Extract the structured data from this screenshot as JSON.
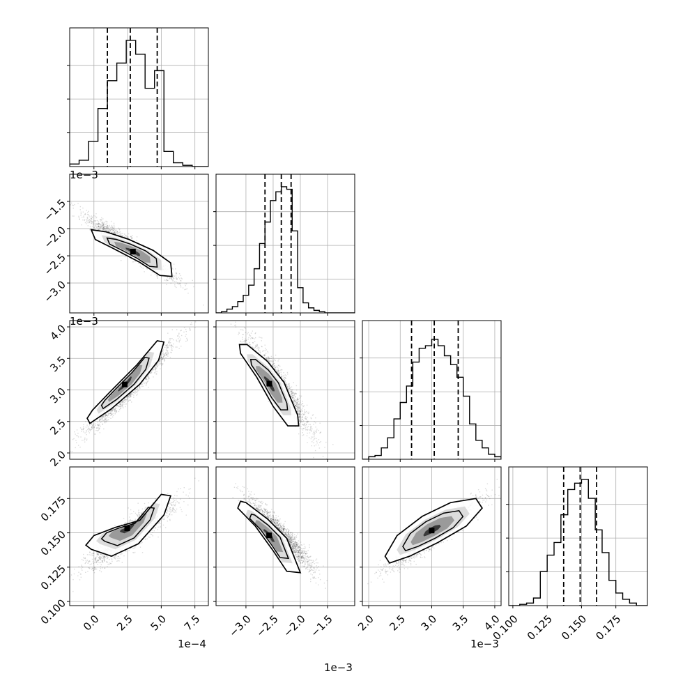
{
  "chart_data": {
    "type": "corner",
    "n_params": 4,
    "colors": {
      "contour": "#000000",
      "points": "#000000",
      "grid": "#b0b0b0",
      "axes": "#000000"
    },
    "grid": true,
    "params": [
      {
        "range": [
          -1.8,
          8.5
        ],
        "scale_label": "1e−4",
        "ticks": [
          0.0,
          2.5,
          5.0,
          7.5
        ],
        "tick_labels": [
          "0.0",
          "2.5",
          "5.0",
          "7.5"
        ],
        "quantiles": [
          1.0,
          2.7,
          4.7
        ],
        "hist_bins": [
          -1.8,
          -1.1,
          -0.4,
          0.3,
          1.0,
          1.7,
          2.4,
          3.1,
          3.8,
          4.5,
          5.2,
          5.9,
          6.6,
          7.3,
          8.0,
          8.5
        ],
        "hist": [
          0.02,
          0.05,
          0.2,
          0.46,
          0.68,
          0.82,
          1.0,
          0.89,
          0.62,
          0.76,
          0.12,
          0.03,
          0.01,
          0.0,
          0.0
        ]
      },
      {
        "range": [
          -3.55,
          -1.0
        ],
        "scale_label": "1e−3",
        "ticks": [
          -3.0,
          -2.5,
          -2.0,
          -1.5
        ],
        "tick_labels": [
          "−3.0",
          "−2.5",
          "−2.0",
          "−1.5"
        ],
        "quantiles": [
          -2.65,
          -2.35,
          -2.17
        ],
        "hist_bins": [
          -3.55,
          -3.45,
          -3.35,
          -3.25,
          -3.15,
          -3.05,
          -2.95,
          -2.85,
          -2.75,
          -2.65,
          -2.55,
          -2.45,
          -2.35,
          -2.25,
          -2.15,
          -2.05,
          -1.95,
          -1.85,
          -1.75,
          -1.65,
          -1.55,
          -1.0
        ],
        "hist": [
          0.0,
          0.01,
          0.03,
          0.05,
          0.09,
          0.14,
          0.22,
          0.35,
          0.55,
          0.72,
          0.89,
          0.96,
          1.0,
          0.98,
          0.65,
          0.2,
          0.08,
          0.04,
          0.02,
          0.01,
          0.0
        ]
      },
      {
        "range": [
          1.9,
          4.1
        ],
        "scale_label": "1e−3",
        "ticks": [
          2.0,
          2.5,
          3.0,
          3.5,
          4.0
        ],
        "tick_labels": [
          "2.0",
          "2.5",
          "3.0",
          "3.5",
          "4.0"
        ],
        "quantiles": [
          2.68,
          3.04,
          3.42
        ],
        "hist_bins": [
          1.9,
          2.0,
          2.1,
          2.2,
          2.3,
          2.4,
          2.5,
          2.6,
          2.7,
          2.8,
          2.9,
          3.0,
          3.1,
          3.2,
          3.3,
          3.4,
          3.5,
          3.6,
          3.7,
          3.8,
          3.9,
          4.0,
          4.1
        ],
        "hist": [
          0.0,
          0.02,
          0.03,
          0.09,
          0.17,
          0.32,
          0.45,
          0.58,
          0.77,
          0.88,
          0.9,
          0.95,
          0.9,
          0.82,
          0.75,
          0.65,
          0.5,
          0.28,
          0.15,
          0.09,
          0.04,
          0.02
        ]
      },
      {
        "range": [
          0.097,
          0.198
        ],
        "scale_label": "",
        "ticks": [
          0.1,
          0.125,
          0.15,
          0.175
        ],
        "tick_labels": [
          "0.100",
          "0.125",
          "0.150",
          "0.175"
        ],
        "quantiles": [
          0.137,
          0.149,
          0.161
        ],
        "hist_bins": [
          0.097,
          0.1,
          0.105,
          0.11,
          0.115,
          0.12,
          0.125,
          0.13,
          0.135,
          0.14,
          0.145,
          0.15,
          0.155,
          0.16,
          0.165,
          0.17,
          0.175,
          0.18,
          0.185,
          0.19,
          0.198
        ],
        "hist": [
          0.0,
          0.0,
          0.01,
          0.02,
          0.06,
          0.27,
          0.4,
          0.5,
          0.72,
          0.92,
          0.97,
          1.0,
          0.85,
          0.6,
          0.42,
          0.2,
          0.1,
          0.05,
          0.02,
          0.0
        ]
      }
    ],
    "pairs": [
      {
        "row": 1,
        "col": 0,
        "mean": [
          2.7,
          -2.35
        ],
        "sd": [
          1.6,
          0.28
        ],
        "corr": -0.95,
        "contour": [
          [
            0.9,
            -2.06
          ],
          [
            2.6,
            -2.2
          ],
          [
            4.4,
            -2.4
          ],
          [
            5.7,
            -2.63
          ],
          [
            5.8,
            -2.88
          ],
          [
            4.9,
            -2.86
          ],
          [
            3.4,
            -2.62
          ],
          [
            1.4,
            -2.36
          ],
          [
            0.1,
            -2.2
          ],
          [
            -0.2,
            -2.02
          ]
        ]
      },
      {
        "row": 2,
        "col": 0,
        "mean": [
          2.7,
          3.04
        ],
        "sd": [
          1.6,
          0.35
        ],
        "corr": 0.97,
        "contour": [
          [
            -0.3,
            2.47
          ],
          [
            1.3,
            2.7
          ],
          [
            3.4,
            3.09
          ],
          [
            4.8,
            3.47
          ],
          [
            5.2,
            3.76
          ],
          [
            4.7,
            3.78
          ],
          [
            3.2,
            3.4
          ],
          [
            1.2,
            2.97
          ],
          [
            -0.1,
            2.68
          ],
          [
            -0.5,
            2.55
          ]
        ]
      },
      {
        "row": 2,
        "col": 1,
        "mean": [
          -2.36,
          3.04
        ],
        "sd": [
          0.28,
          0.35
        ],
        "corr": -0.93,
        "contour": [
          [
            -2.98,
            3.72
          ],
          [
            -2.6,
            3.45
          ],
          [
            -2.3,
            3.12
          ],
          [
            -2.05,
            2.6
          ],
          [
            -2.03,
            2.43
          ],
          [
            -2.23,
            2.43
          ],
          [
            -2.5,
            2.74
          ],
          [
            -2.8,
            3.2
          ],
          [
            -3.1,
            3.58
          ],
          [
            -3.12,
            3.72
          ]
        ]
      },
      {
        "row": 3,
        "col": 0,
        "mean": [
          2.7,
          0.149
        ],
        "sd": [
          1.6,
          0.012
        ],
        "corr": 0.9,
        "contour": [
          [
            -0.2,
            0.138
          ],
          [
            1.3,
            0.133
          ],
          [
            3.3,
            0.142
          ],
          [
            5.2,
            0.163
          ],
          [
            5.7,
            0.177
          ],
          [
            5.0,
            0.178
          ],
          [
            3.4,
            0.159
          ],
          [
            1.6,
            0.154
          ],
          [
            0.0,
            0.148
          ],
          [
            -0.6,
            0.141
          ]
        ]
      },
      {
        "row": 3,
        "col": 1,
        "mean": [
          -2.36,
          0.149
        ],
        "sd": [
          0.28,
          0.012
        ],
        "corr": -0.93,
        "contour": [
          [
            -3.0,
            0.172
          ],
          [
            -2.6,
            0.16
          ],
          [
            -2.25,
            0.146
          ],
          [
            -2.07,
            0.128
          ],
          [
            -2.0,
            0.121
          ],
          [
            -2.25,
            0.122
          ],
          [
            -2.5,
            0.137
          ],
          [
            -2.83,
            0.155
          ],
          [
            -3.15,
            0.168
          ],
          [
            -3.1,
            0.173
          ]
        ]
      },
      {
        "row": 3,
        "col": 2,
        "mean": [
          3.04,
          0.149
        ],
        "sd": [
          0.35,
          0.012
        ],
        "corr": 0.93,
        "contour": [
          [
            2.33,
            0.128
          ],
          [
            2.65,
            0.133
          ],
          [
            3.1,
            0.143
          ],
          [
            3.55,
            0.155
          ],
          [
            3.8,
            0.168
          ],
          [
            3.7,
            0.175
          ],
          [
            3.3,
            0.172
          ],
          [
            2.85,
            0.162
          ],
          [
            2.45,
            0.148
          ],
          [
            2.26,
            0.133
          ]
        ]
      }
    ]
  }
}
